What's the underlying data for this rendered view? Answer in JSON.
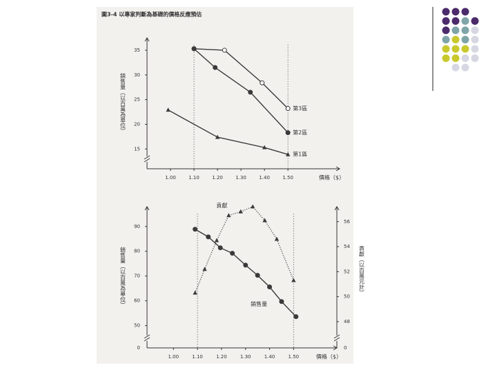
{
  "chart_data": [
    {
      "type": "line",
      "title": "圖3-4 以專家判斷為基礎的價格反應預估",
      "xlabel": "價格（$）",
      "ylabel": "銷售量（以百萬為單位）",
      "xlim": [
        0.9,
        1.72
      ],
      "ylim": [
        11,
        37.5
      ],
      "xticks": [
        {
          "value": 1,
          "label": "1.00"
        },
        {
          "value": 1.1,
          "label": "1.10"
        },
        {
          "value": 1.2,
          "label": "1.20"
        },
        {
          "value": 1.3,
          "label": "1.30"
        },
        {
          "value": 1.4,
          "label": "1.40"
        },
        {
          "value": 1.5,
          "label": "1.50"
        }
      ],
      "yticks": [
        15,
        20,
        25,
        30,
        35
      ],
      "vlines": [
        1.1,
        1.5
      ],
      "series": [
        {
          "name": "第3區",
          "color": "#3a3a3a",
          "marker": "open-circle",
          "x": [
            1.1,
            1.23,
            1.39,
            1.5
          ],
          "values": [
            35.3,
            35,
            28.4,
            23.2
          ]
        },
        {
          "name": "第2區",
          "color": "#3a3a3a",
          "marker": "circle",
          "x": [
            1.1,
            1.19,
            1.34,
            1.5
          ],
          "values": [
            35.3,
            31.5,
            26.5,
            18.3
          ]
        },
        {
          "name": "第1區",
          "color": "#3a3a3a",
          "marker": "triangle",
          "x": [
            0.99,
            1.2,
            1.4,
            1.5
          ],
          "values": [
            22.9,
            17.4,
            15.3,
            13.9
          ]
        }
      ]
    },
    {
      "type": "line",
      "xlabel": "價格（$）",
      "ylabel": "銷售量（以百萬為單位）",
      "y2label": "貢獻（以百萬元計）",
      "xlim": [
        0.89,
        1.68
      ],
      "ylim": [
        41,
        98
      ],
      "y2lim": [
        45.9,
        57.2
      ],
      "xticks": [
        {
          "value": 1,
          "label": "1.00"
        },
        {
          "value": 1.1,
          "label": "1.10"
        },
        {
          "value": 1.2,
          "label": "1.20"
        },
        {
          "value": 1.3,
          "label": "1.30"
        },
        {
          "value": 1.4,
          "label": "1.40"
        },
        {
          "value": 1.5,
          "label": "1.50"
        }
      ],
      "yticks": [
        50,
        60,
        70,
        80,
        90
      ],
      "y2ticks": [
        48,
        50,
        52,
        54,
        56
      ],
      "y_break_tick_label": "0",
      "y2_break_tick_label": "0",
      "vlines": [
        1.1,
        1.5
      ],
      "series": [
        {
          "name": "銷售量",
          "color": "#3a3a3a",
          "marker": "circle",
          "line_style": "solid",
          "x": [
            1.09,
            1.145,
            1.195,
            1.245,
            1.3,
            1.35,
            1.4,
            1.45,
            1.51
          ],
          "values": [
            88.9,
            85.8,
            81.4,
            79.2,
            74.4,
            70.3,
            65.6,
            59.7,
            53.6
          ]
        },
        {
          "name": "貢獻",
          "axis": "y2",
          "color": "#3a3a3a",
          "marker": "triangle",
          "line_style": "dotted",
          "x": [
            1.09,
            1.13,
            1.18,
            1.23,
            1.28,
            1.33,
            1.38,
            1.43,
            1.5
          ],
          "values": [
            50.3,
            52.2,
            54.5,
            56.5,
            56.8,
            57.2,
            56.1,
            54.6,
            51.3
          ]
        }
      ]
    }
  ]
}
